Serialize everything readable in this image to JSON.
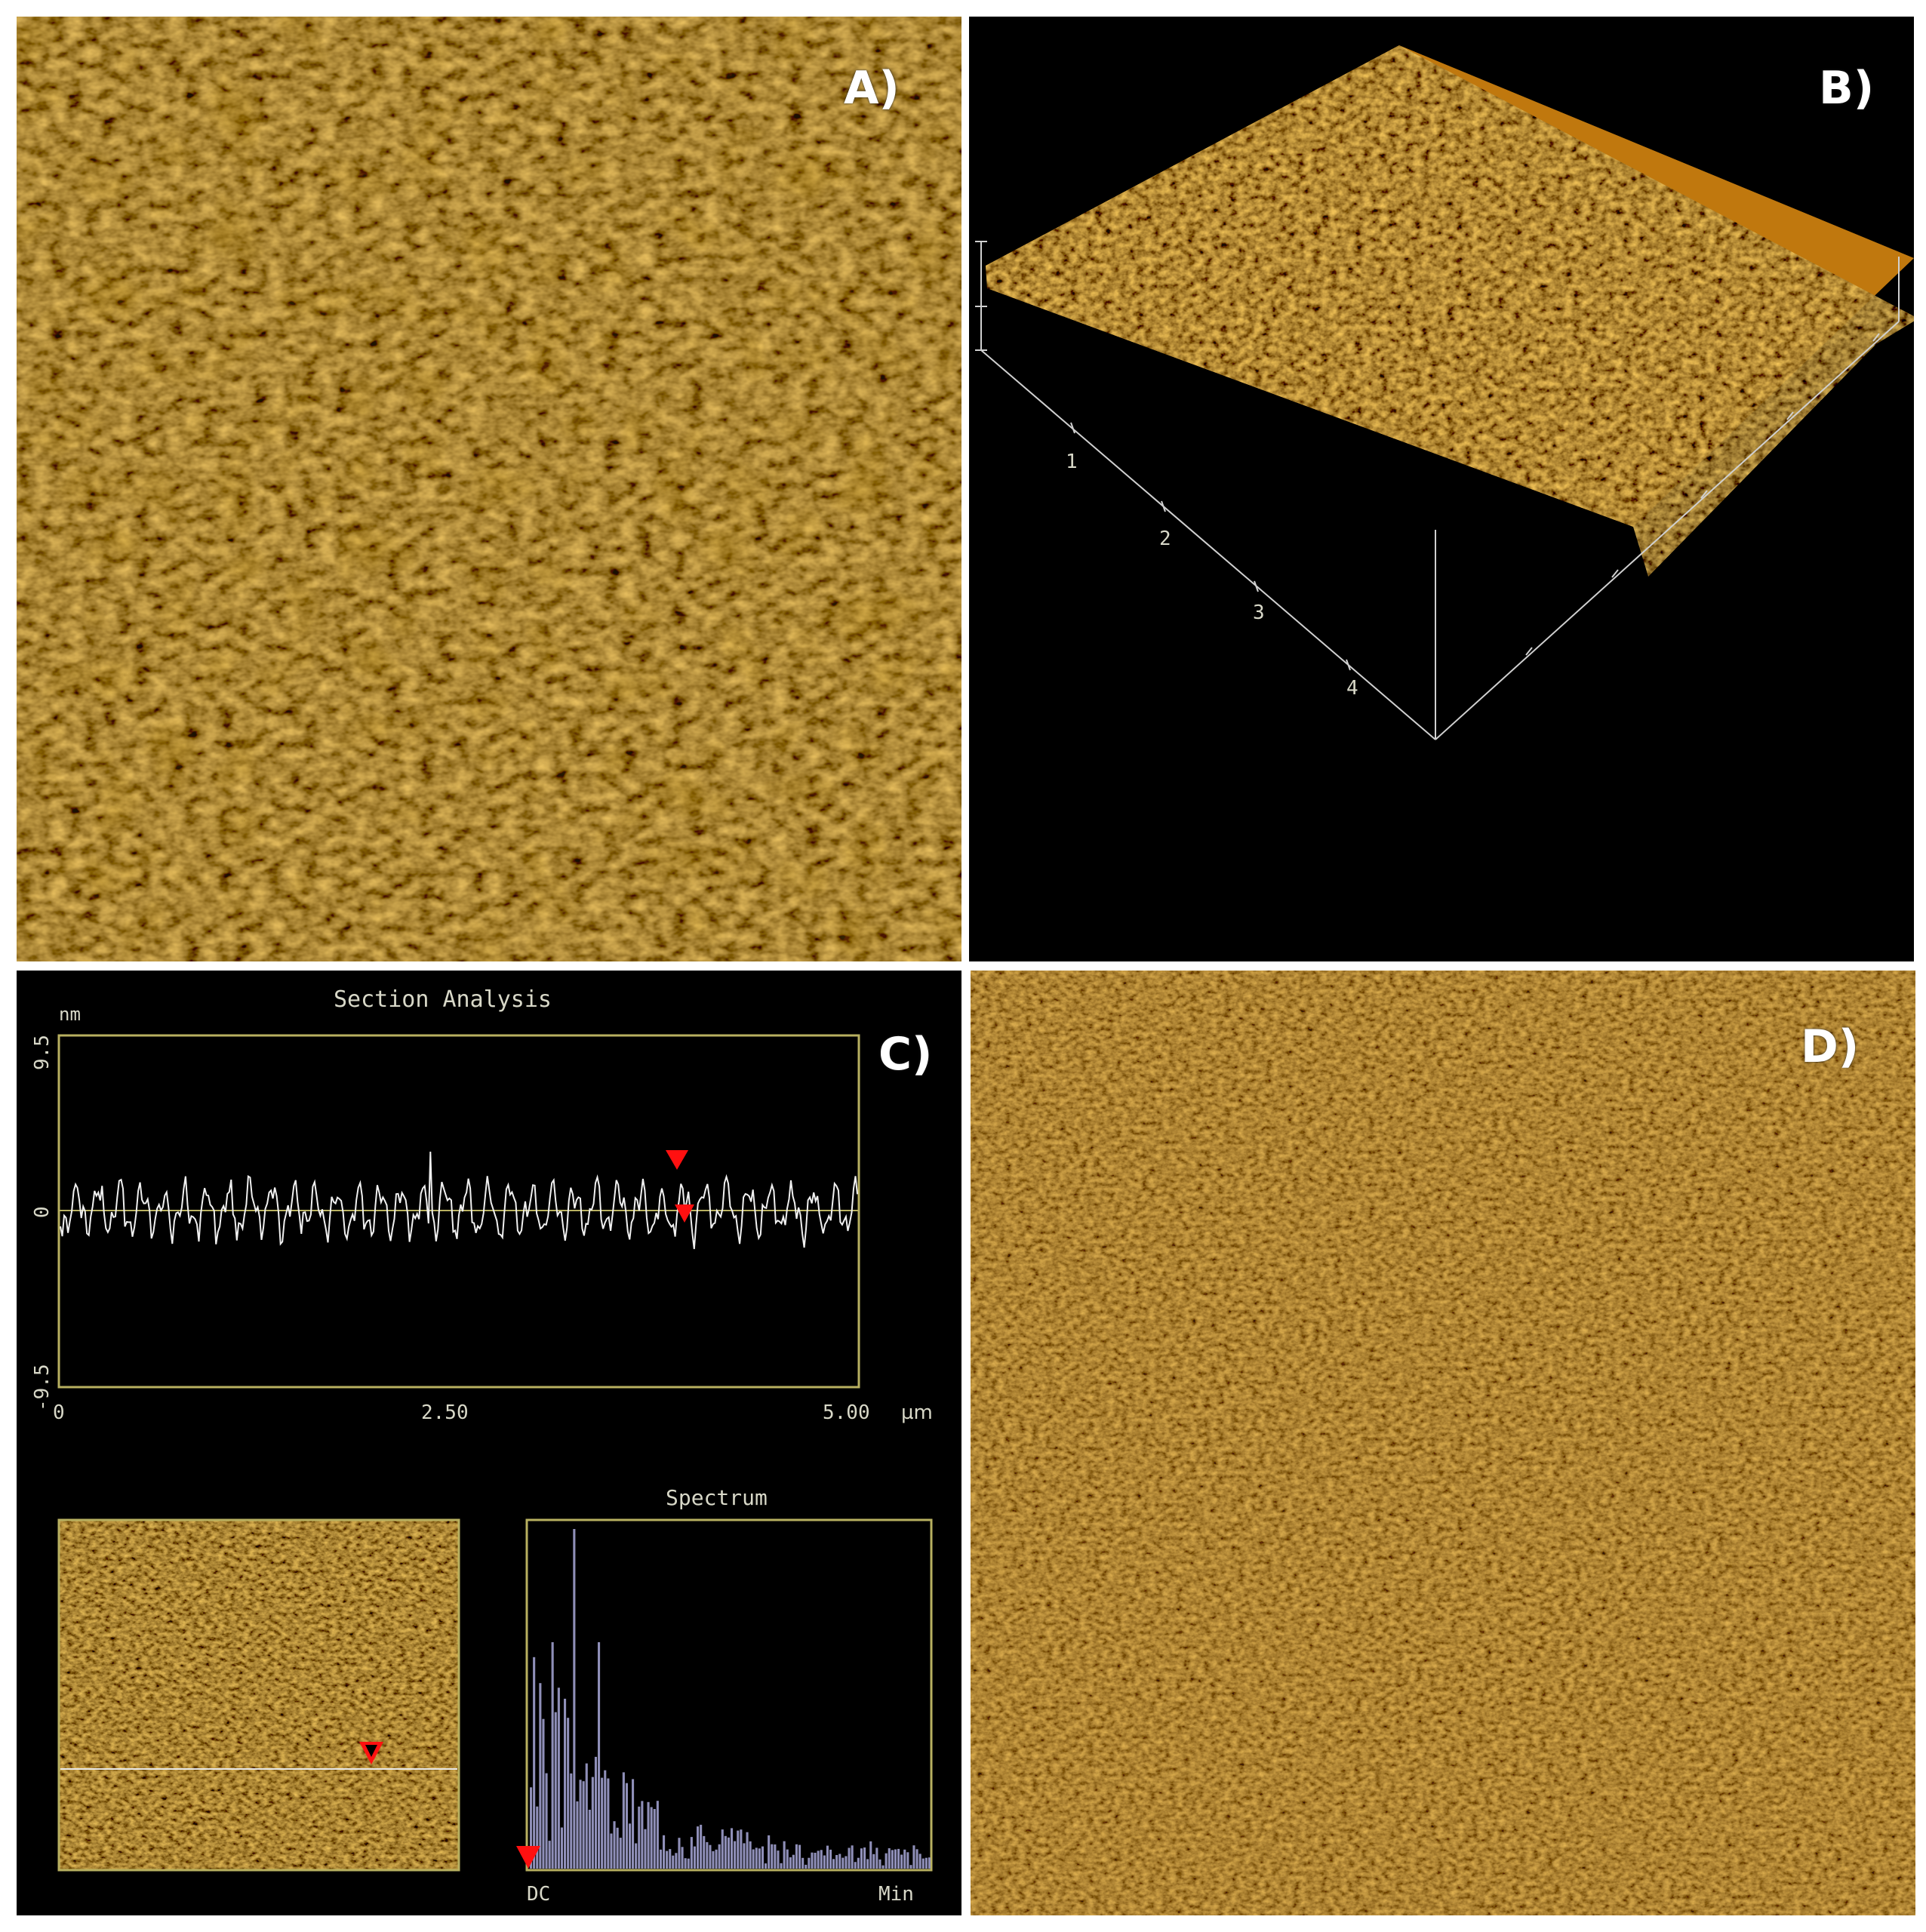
{
  "panels": {
    "a": {
      "label": "A)"
    },
    "b": {
      "label": "B)",
      "axis_ticks": [
        "1",
        "2",
        "3",
        "4"
      ]
    },
    "c": {
      "label": "C)"
    },
    "d": {
      "label": "D)"
    }
  },
  "section_analysis": {
    "title": "Section Analysis",
    "y_unit": "nm",
    "y_ticks": [
      "9.5",
      "0",
      "-9.5"
    ],
    "x_ticks": [
      "0",
      "2.50",
      "5.00"
    ],
    "x_unit": "µm",
    "ylim": [
      -9.5,
      9.5
    ],
    "xlim": [
      0,
      5.0
    ]
  },
  "spectrum": {
    "title": "Spectrum",
    "x_left": "DC",
    "x_right": "Min"
  },
  "colors": {
    "afm_orange": "#b06a10",
    "afm_highlight": "#d8b040",
    "frame_olive": "#b8b060",
    "marker_red": "#ff1010",
    "spectrum_bars": "#8f8fb8",
    "profile_line": "#f0f0f0"
  }
}
